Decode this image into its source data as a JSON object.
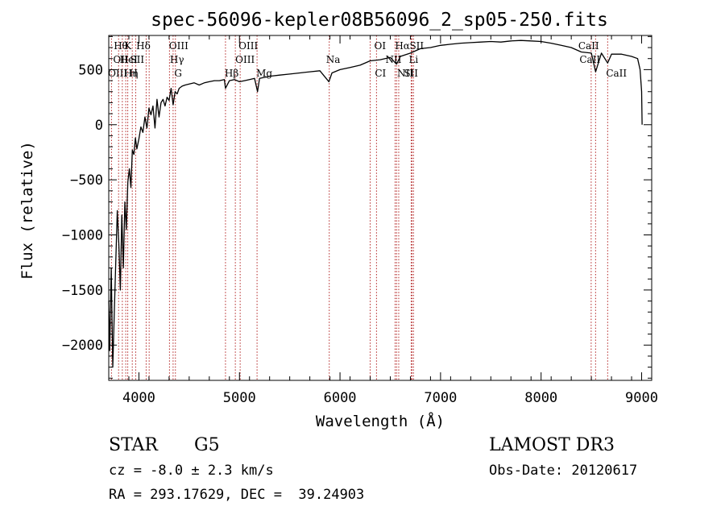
{
  "chart_data": {
    "type": "line",
    "title": "spec-56096-kepler08B56096_2_sp05-250.fits",
    "xlabel": "Wavelength (Å)",
    "ylabel": "Flux (relative)",
    "xlim": [
      3700,
      9100
    ],
    "ylim": [
      -2320,
      810
    ],
    "xticks": [
      4000,
      5000,
      6000,
      7000,
      8000,
      9000
    ],
    "xtick_labels": [
      "4000",
      "5000",
      "6000",
      "7000",
      "8000",
      "9000"
    ],
    "yticks": [
      -2000,
      -1500,
      -1000,
      -500,
      0,
      500
    ],
    "ytick_labels": [
      "−2000",
      "−1500",
      "−1000",
      "−500",
      "0",
      "500"
    ],
    "series": [
      {
        "name": "spectrum",
        "x": [
          3700,
          3710,
          3725,
          3740,
          3755,
          3770,
          3785,
          3800,
          3815,
          3830,
          3845,
          3860,
          3875,
          3890,
          3905,
          3920,
          3935,
          3950,
          3965,
          3980,
          4000,
          4020,
          4040,
          4060,
          4080,
          4100,
          4120,
          4140,
          4160,
          4180,
          4200,
          4220,
          4240,
          4260,
          4280,
          4300,
          4320,
          4340,
          4360,
          4380,
          4400,
          4430,
          4460,
          4500,
          4550,
          4600,
          4650,
          4700,
          4750,
          4800,
          4850,
          4861,
          4900,
          4950,
          5000,
          5050,
          5100,
          5150,
          5180,
          5200,
          5250,
          5300,
          5400,
          5500,
          5600,
          5700,
          5800,
          5890,
          5920,
          6000,
          6100,
          6200,
          6300,
          6400,
          6500,
          6563,
          6600,
          6700,
          6800,
          6900,
          7000,
          7100,
          7200,
          7300,
          7400,
          7500,
          7600,
          7700,
          7800,
          7900,
          8000,
          8100,
          8200,
          8300,
          8400,
          8500,
          8542,
          8600,
          8662,
          8700,
          8800,
          8900,
          8960,
          8985,
          9000,
          9005
        ],
        "y": [
          -1600,
          -2050,
          -1300,
          -2200,
          -1700,
          -1250,
          -780,
          -1080,
          -1500,
          -820,
          -1300,
          -700,
          -950,
          -520,
          -400,
          -570,
          -230,
          -270,
          -120,
          -220,
          -130,
          -20,
          -70,
          70,
          -30,
          150,
          90,
          170,
          -30,
          230,
          70,
          200,
          230,
          170,
          250,
          220,
          330,
          180,
          300,
          280,
          330,
          350,
          360,
          370,
          380,
          360,
          380,
          390,
          400,
          400,
          410,
          330,
          400,
          410,
          390,
          400,
          410,
          420,
          300,
          420,
          430,
          440,
          450,
          460,
          470,
          480,
          490,
          390,
          470,
          500,
          520,
          540,
          580,
          590,
          610,
          550,
          620,
          650,
          690,
          700,
          720,
          730,
          740,
          745,
          750,
          755,
          750,
          760,
          765,
          760,
          755,
          740,
          720,
          700,
          660,
          650,
          480,
          650,
          560,
          640,
          640,
          620,
          600,
          500,
          300,
          0
        ]
      }
    ],
    "lines": [
      {
        "name": "Hθ",
        "wl": 3798,
        "row": 1,
        "dx": -6
      },
      {
        "name": "OII",
        "wl": 3727,
        "row": 2,
        "dx": 2
      },
      {
        "name": "OIII",
        "wl": 3869,
        "row": 3,
        "dx": -22
      },
      {
        "name": "K",
        "wl": 3934,
        "row": 1,
        "dx": -10
      },
      {
        "name": "HeI",
        "wl": 3889,
        "row": 2,
        "dx": -10
      },
      {
        "name": "Hη",
        "wl": 3835,
        "row": 3,
        "dx": 2
      },
      {
        "name": "H",
        "wl": 3968,
        "row": 3,
        "dx": -8
      },
      {
        "name": "Hδ",
        "wl": 4102,
        "row": 1,
        "dx": -16
      },
      {
        "name": "SII",
        "wl": 4072,
        "row": 2,
        "dx": -20
      },
      {
        "name": "OIII",
        "wl": 4363,
        "row": 1,
        "dx": -8
      },
      {
        "name": "Hγ",
        "wl": 4340,
        "row": 2,
        "dx": -4
      },
      {
        "name": "G",
        "wl": 4304,
        "row": 3,
        "dx": 6
      },
      {
        "name": "Hβ",
        "wl": 4861,
        "row": 3,
        "dx": -1
      },
      {
        "name": "OIII",
        "wl": 4959,
        "row": 1,
        "dx": 4
      },
      {
        "name": "OIII",
        "wl": 5007,
        "row": 2,
        "dx": -6
      },
      {
        "name": "Mg",
        "wl": 5175,
        "row": 3,
        "dx": -1
      },
      {
        "name": "Na",
        "wl": 5893,
        "row": 2,
        "dx": -4
      },
      {
        "name": "OI",
        "wl": 6300,
        "row": 1,
        "dx": 5
      },
      {
        "name": "CI",
        "wl": 6363,
        "row": 3,
        "dx": -2
      },
      {
        "name": "Hα",
        "wl": 6563,
        "row": 1,
        "dx": -2
      },
      {
        "name": "SII",
        "wl": 6716,
        "row": 1,
        "dx": -3
      },
      {
        "name": "NII",
        "wl": 6548,
        "row": 2,
        "dx": -12
      },
      {
        "name": "Li",
        "wl": 6708,
        "row": 2,
        "dx": -3
      },
      {
        "name": "NII",
        "wl": 6584,
        "row": 3,
        "dx": -2
      },
      {
        "name": "SII",
        "wl": 6731,
        "row": 3,
        "dx": -12
      },
      {
        "name": "CaII",
        "wl": 8498,
        "row": 1,
        "dx": -16
      },
      {
        "name": "CaII",
        "wl": 8542,
        "row": 2,
        "dx": -20
      },
      {
        "name": "CaII",
        "wl": 8662,
        "row": 3,
        "dx": -2
      }
    ]
  },
  "info": {
    "object_class": "STAR",
    "subclass": "G5",
    "survey": "LAMOST DR3",
    "redshift": "cz = -8.0 ± 2.3 km/s",
    "obs_date": "Obs-Date: 20120617",
    "coords": "RA = 293.17629, DEC =  39.24903"
  },
  "colors": {
    "spectrum": "#000000",
    "line_marker": "#b22222",
    "axis": "#000000"
  }
}
